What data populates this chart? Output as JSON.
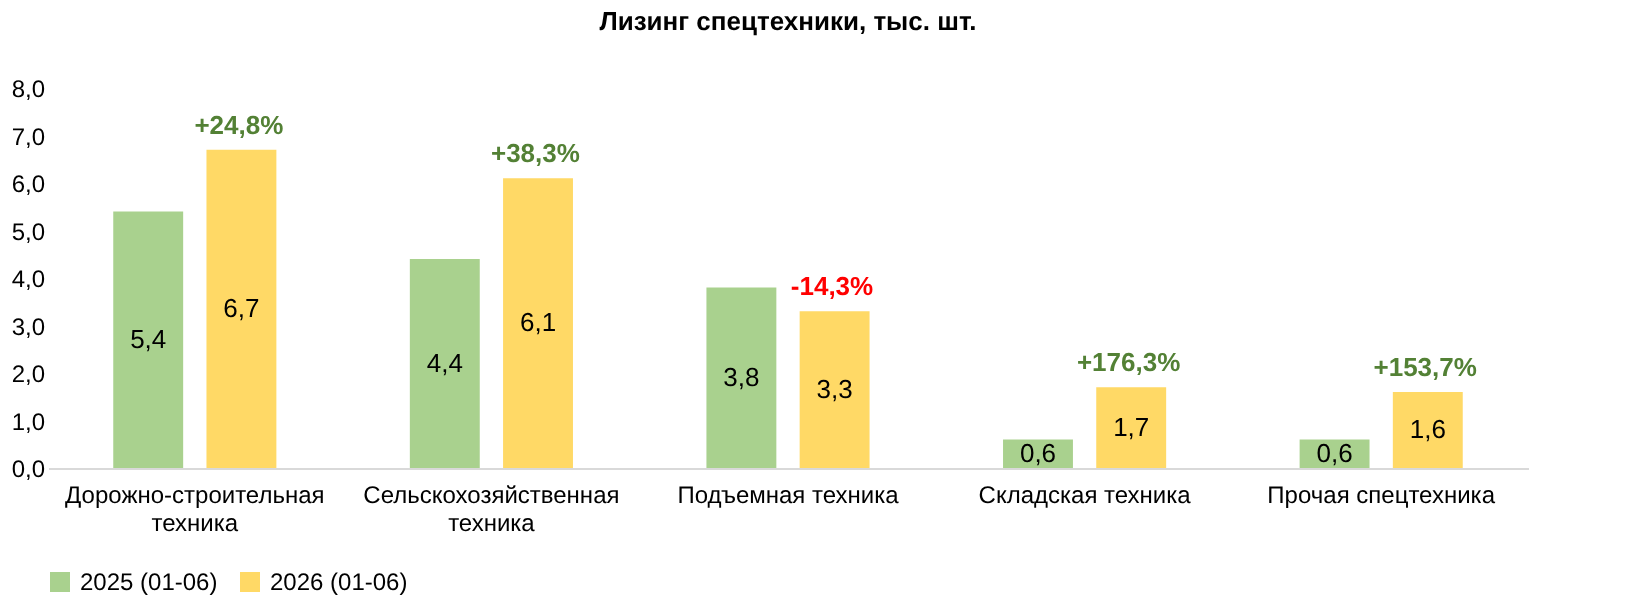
{
  "chart_data": {
    "type": "bar",
    "title": "Лизинг спецтехники, тыс. шт.",
    "categories": [
      "Дорожно-строительная техника",
      "Сельскохозяйственная техника",
      "Подъемная техника",
      "Складская техника",
      "Прочая спецтехника"
    ],
    "series": [
      {
        "name": "2025 (01-06)",
        "color": "#a9d18e",
        "values": [
          5.4,
          4.4,
          3.8,
          0.6,
          0.6
        ],
        "value_labels": [
          "5,4",
          "4,4",
          "3,8",
          "0,6",
          "0,6"
        ]
      },
      {
        "name": "2026 (01-06)",
        "color": "#ffd966",
        "values": [
          6.7,
          6.1,
          3.3,
          1.7,
          1.6
        ],
        "value_labels": [
          "6,7",
          "6,1",
          "3,3",
          "1,7",
          "1,6"
        ]
      }
    ],
    "annotations": [
      "+24,8%",
      "+38,3%",
      "-14,3%",
      "+176,3%",
      "+153,7%"
    ],
    "ylim": [
      0,
      8
    ],
    "yticks": [
      {
        "value": 0,
        "label": "0,0"
      },
      {
        "value": 1,
        "label": "1,0"
      },
      {
        "value": 2,
        "label": "2,0"
      },
      {
        "value": 3,
        "label": "3,0"
      },
      {
        "value": 4,
        "label": "4,0"
      },
      {
        "value": 5,
        "label": "5,0"
      },
      {
        "value": 6,
        "label": "6,0"
      },
      {
        "value": 7,
        "label": "7,0"
      },
      {
        "value": 8,
        "label": "8,0"
      }
    ],
    "grid": false,
    "legend": "bottom"
  }
}
